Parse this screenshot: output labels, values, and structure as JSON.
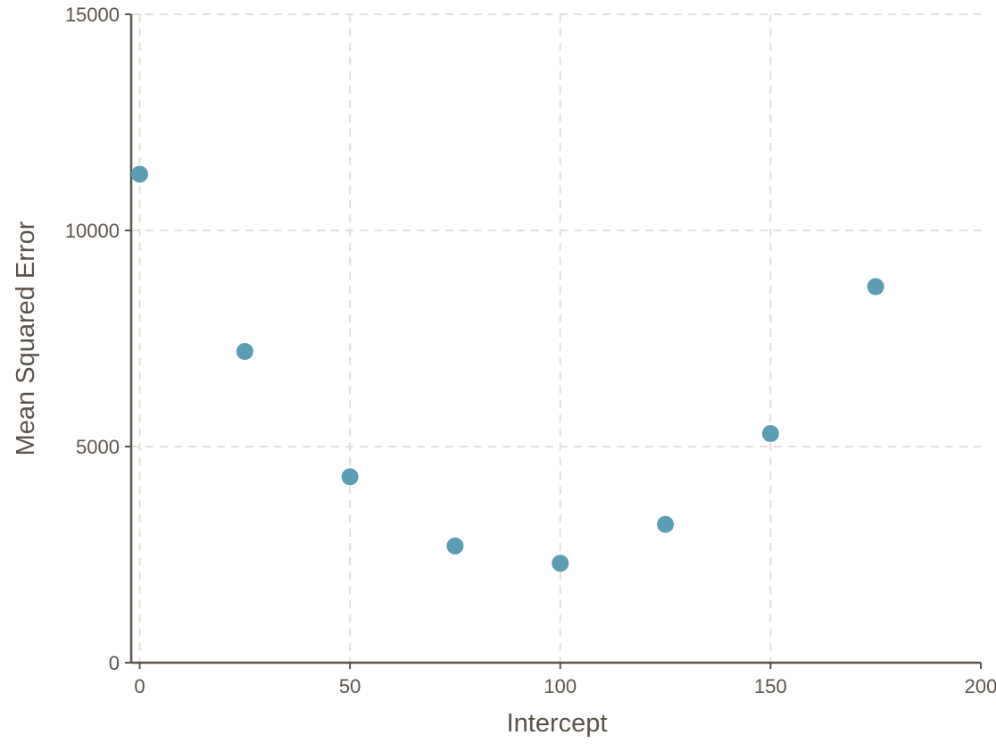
{
  "chart_data": {
    "type": "scatter",
    "xlabel": "Intercept",
    "ylabel": "Mean Squared Error",
    "xlim": [
      -2,
      200
    ],
    "ylim": [
      0,
      15000
    ],
    "xticks": [
      0,
      50,
      100,
      150,
      200
    ],
    "yticks": [
      0,
      5000,
      10000,
      15000
    ],
    "xtick_labels": [
      "0",
      "50",
      "100",
      "150",
      "200"
    ],
    "ytick_labels": [
      "0",
      "5000",
      "10000",
      "15000"
    ],
    "grid": true,
    "series": [
      {
        "x": [
          0,
          25,
          50,
          75,
          100,
          125,
          150,
          175
        ],
        "y": [
          11300,
          7200,
          4300,
          2700,
          2300,
          3200,
          5300,
          8700
        ]
      }
    ],
    "colors": {
      "point": "#5b9db5",
      "axis": "#5b534a",
      "grid": "#e3e0d8"
    }
  }
}
